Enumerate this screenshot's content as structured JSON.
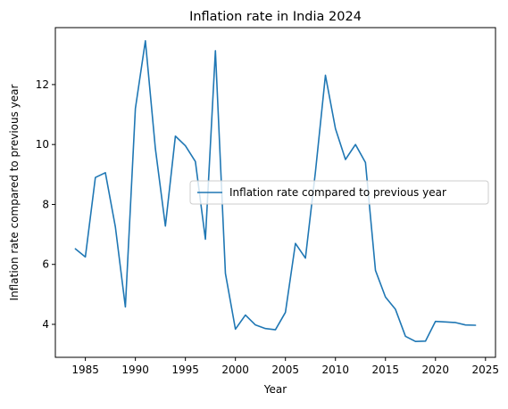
{
  "chart_data": {
    "type": "line",
    "title": "Inflation rate in India 2024",
    "xlabel": "Year",
    "ylabel": "Inflation rate compared to previous year",
    "xlim": [
      1982,
      2026
    ],
    "ylim": [
      2.9,
      13.9
    ],
    "xticks": [
      1985,
      1990,
      1995,
      2000,
      2005,
      2010,
      2015,
      2020,
      2025
    ],
    "yticks": [
      4,
      6,
      8,
      10,
      12
    ],
    "grid": false,
    "legend": {
      "position": "center-right",
      "entries": [
        "Inflation rate compared to previous year"
      ]
    },
    "series": [
      {
        "name": "Inflation rate compared to previous year",
        "color": "#1f77b4",
        "x": [
          1984,
          1985,
          1986,
          1987,
          1988,
          1989,
          1990,
          1991,
          1992,
          1993,
          1994,
          1995,
          1996,
          1997,
          1998,
          1999,
          2000,
          2001,
          2002,
          2003,
          2004,
          2005,
          2006,
          2007,
          2008,
          2009,
          2010,
          2011,
          2012,
          2013,
          2014,
          2015,
          2016,
          2017,
          2018,
          2019,
          2020,
          2021,
          2022,
          2023,
          2024
        ],
        "y": [
          6.52,
          6.25,
          8.9,
          9.06,
          7.25,
          4.58,
          11.2,
          13.46,
          9.86,
          7.28,
          10.28,
          9.96,
          9.43,
          6.84,
          13.13,
          5.7,
          3.84,
          4.31,
          3.98,
          3.86,
          3.82,
          4.4,
          6.7,
          6.21,
          9.09,
          12.31,
          10.53,
          9.5,
          10.0,
          9.4,
          5.8,
          4.91,
          4.5,
          3.6,
          3.43,
          3.44,
          4.1,
          4.08,
          4.06,
          3.98,
          3.97
        ]
      }
    ]
  }
}
